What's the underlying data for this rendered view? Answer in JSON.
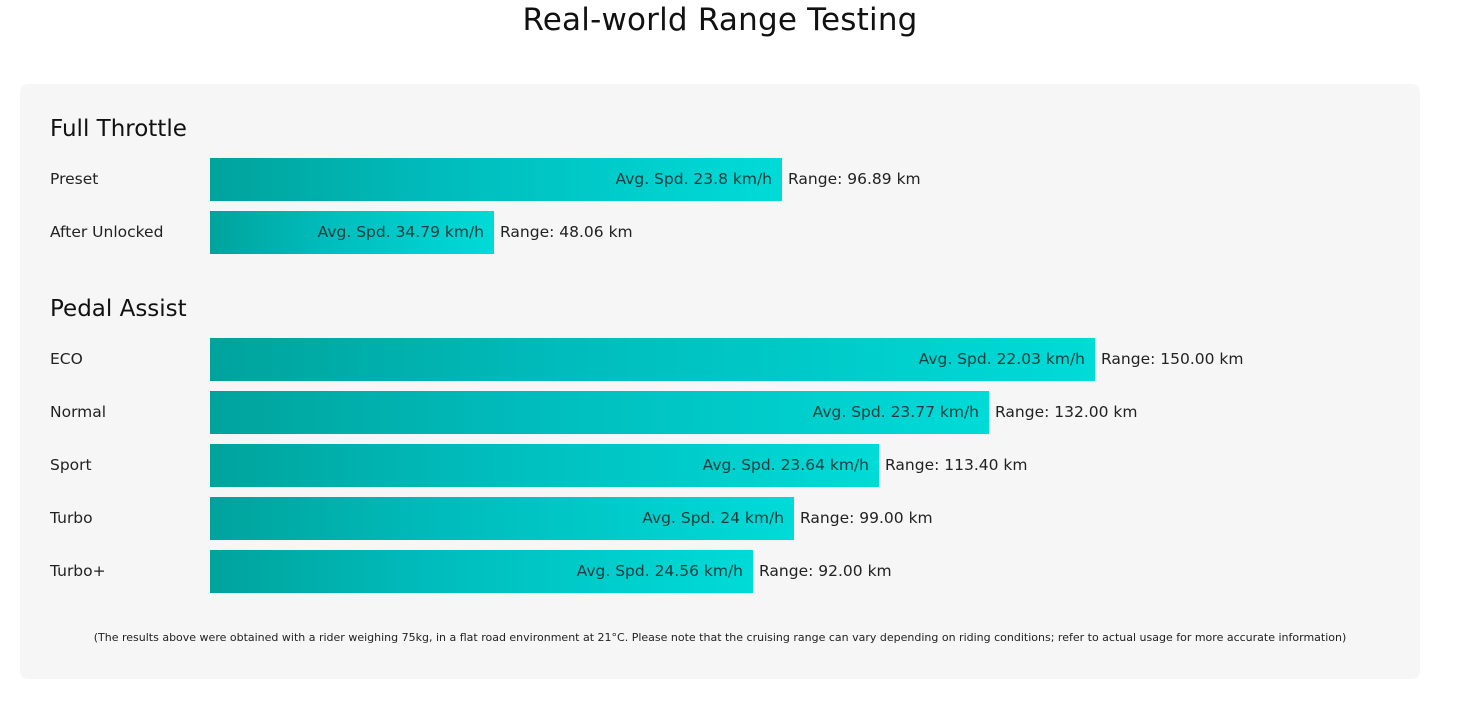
{
  "page": {
    "title": "Real-world Range Testing",
    "footnote": "(The results above were obtained with a rider weighing 75kg, in a flat road environment at 21°C. Please note that the cruising range can vary depending on riding conditions; refer to actual usage for more accurate information)"
  },
  "colors": {
    "bar_start": "#00a39c",
    "bar_end": "#00dbd8",
    "card_background": "#f6f6f6"
  },
  "chart_data": {
    "type": "bar",
    "orientation": "horizontal",
    "value_unit": "km",
    "groups": [
      {
        "title": "Full Throttle",
        "items": [
          {
            "label": "Preset",
            "range_km": 96.89,
            "speed_text": "Avg. Spd. 23.8 km/h",
            "range_text": "Range: 96.89 km"
          },
          {
            "label": "After Unlocked",
            "range_km": 48.06,
            "speed_text": "Avg. Spd. 34.79 km/h",
            "range_text": "Range: 48.06 km"
          }
        ]
      },
      {
        "title": "Pedal Assist",
        "items": [
          {
            "label": "ECO",
            "range_km": 150.0,
            "speed_text": "Avg. Spd. 22.03 km/h",
            "range_text": "Range: 150.00 km"
          },
          {
            "label": "Normal",
            "range_km": 132.0,
            "speed_text": "Avg. Spd. 23.77 km/h",
            "range_text": "Range: 132.00 km"
          },
          {
            "label": "Sport",
            "range_km": 113.4,
            "speed_text": "Avg. Spd. 23.64 km/h",
            "range_text": "Range: 113.40 km"
          },
          {
            "label": "Turbo",
            "range_km": 99.0,
            "speed_text": "Avg. Spd. 24 km/h",
            "range_text": "Range: 99.00 km"
          },
          {
            "label": "Turbo+",
            "range_km": 92.0,
            "speed_text": "Avg. Spd. 24.56 km/h",
            "range_text": "Range: 92.00 km"
          }
        ]
      }
    ]
  }
}
